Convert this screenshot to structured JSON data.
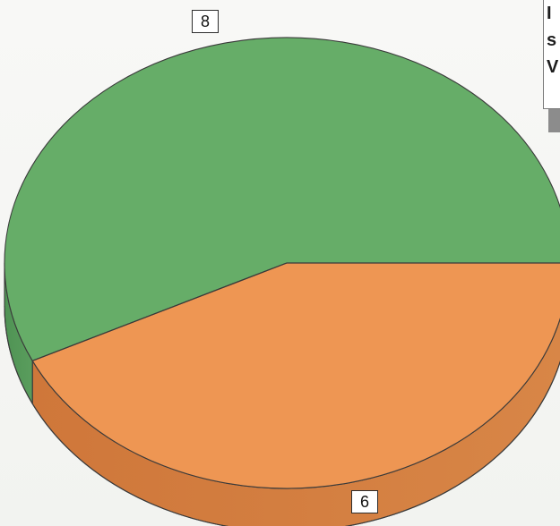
{
  "chart_data": {
    "type": "pie",
    "title": "",
    "values": [
      8,
      6
    ],
    "labels": [
      "8",
      "6"
    ],
    "colors": {
      "green_top": "#66ad67",
      "green_side": "#4d8f52",
      "orange_top": "#ee9652",
      "orange_side": "#d37f3f",
      "outline": "#3a3a3a"
    },
    "legend_text_visible": [
      "I",
      "s",
      "V"
    ]
  }
}
